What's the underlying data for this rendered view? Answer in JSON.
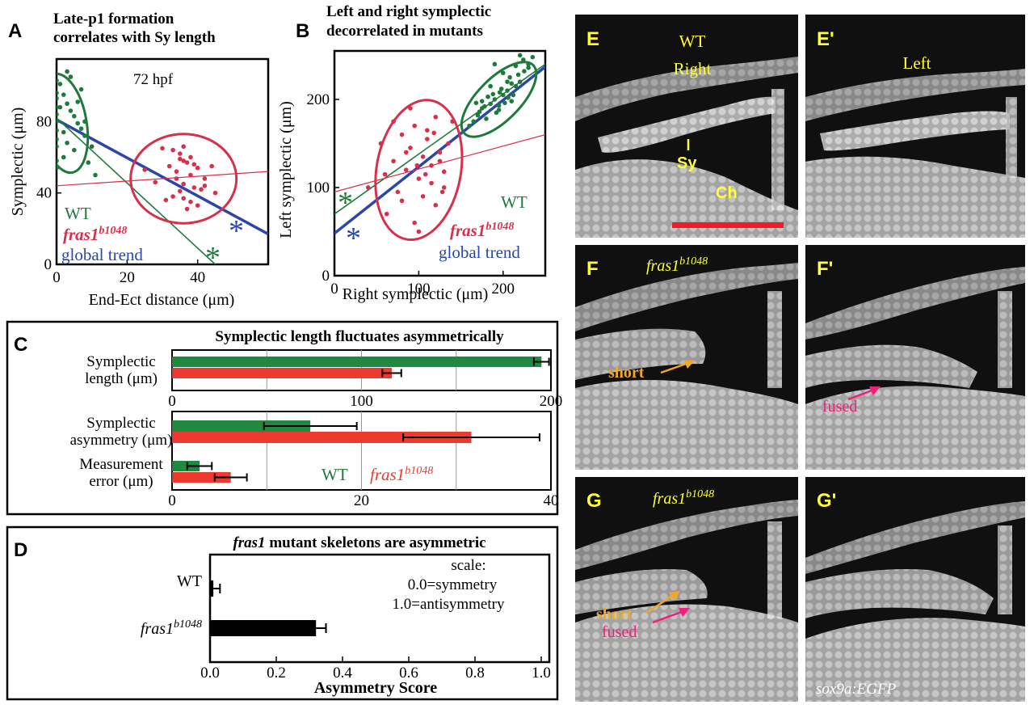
{
  "colors": {
    "wt": "#1e7a3c",
    "mut": "#d8304a",
    "global": "#2b46a8",
    "bar_wt": "#1f8a3f",
    "bar_mut": "#ee3a2e",
    "micro_label": "#ffff33",
    "orange": "#f0a828",
    "magenta": "#f0207a"
  },
  "panels": {
    "a": {
      "letter": "A",
      "title1": "Late-p1 formation",
      "title2": "correlates with Sy length",
      "stage": "72 hpf",
      "ylabel": "Symplectic  (μm)",
      "xlabel": "End-Ect distance (μm)",
      "legend_wt": "WT",
      "legend_mut": "fras1",
      "legend_mut_sup": "b1048",
      "legend_global": "global trend",
      "star": "*"
    },
    "b": {
      "letter": "B",
      "title1": "Left and right symplectic",
      "title2": "decorrelated in mutants",
      "ylabel": "Left symplectic (μm)",
      "xlabel": "Right symplectic (μm)",
      "legend_wt": "WT",
      "legend_mut": "fras1",
      "legend_mut_sup": "b1048",
      "legend_global": "global trend",
      "star": "*"
    },
    "c": {
      "letter": "C",
      "title": "Symplectic length fluctuates asymmetrically",
      "row1a": "Symplectic",
      "row1b": "length (μm)",
      "row2a": "Symplectic",
      "row2b": "asymmetry (μm)",
      "row3a": "Measurement",
      "row3b": "error (μm)",
      "legend_wt": "WT",
      "legend_mut": "fras1",
      "legend_mut_sup": "b1048"
    },
    "d": {
      "letter": "D",
      "title_italic": "fras1",
      "title_rest": " mutant skeletons are asymmetric",
      "cat_wt": "WT",
      "cat_mut": "fras1",
      "cat_mut_sup": "b1048",
      "note1": "scale:",
      "note2": "0.0=symmetry",
      "note3": "1.0=antisymmetry",
      "xlabel": "Asymmetry Score"
    },
    "e": {
      "letter": "E",
      "label1": "WT",
      "label2": "Right",
      "sy": "Sy",
      "ch": "Ch"
    },
    "e2": {
      "letter": "E'",
      "label": "Left"
    },
    "f": {
      "letter": "F",
      "genotype": "fras1",
      "genotype_sup": "b1048",
      "short": "short"
    },
    "f2": {
      "letter": "F'",
      "fused": "fused"
    },
    "g": {
      "letter": "G",
      "genotype": "fras1",
      "genotype_sup": "b1048",
      "short": "short",
      "fused": "fused"
    },
    "g2": {
      "letter": "G'",
      "transgene": "sox9a:EGFP"
    }
  },
  "chart_data": [
    {
      "type": "scatter",
      "panel": "A",
      "title": "Late-p1 formation correlates with Sy length",
      "xlabel": "End-Ect distance (μm)",
      "ylabel": "Symplectic (μm)",
      "xlim": [
        0,
        60
      ],
      "ylim": [
        0,
        115
      ],
      "xticks": [
        0,
        20,
        40
      ],
      "yticks": [
        0,
        40,
        80
      ],
      "series": [
        {
          "name": "WT",
          "x": [
            0,
            0,
            0,
            0,
            0,
            0,
            0,
            0,
            0,
            1,
            2,
            3,
            4,
            5,
            6,
            7,
            8,
            3,
            5,
            2,
            9,
            10,
            4,
            1,
            6,
            8,
            2,
            0,
            0,
            11,
            3,
            7
          ],
          "y": [
            103,
            96,
            93,
            88,
            84,
            80,
            75,
            70,
            66,
            101,
            95,
            90,
            86,
            83,
            79,
            76,
            72,
            68,
            64,
            60,
            57,
            66,
            105,
            88,
            91,
            80,
            74,
            58,
            54,
            50,
            108,
            98
          ]
        },
        {
          "name": "fras1 b1048",
          "x": [
            30,
            33,
            35,
            36,
            38,
            37,
            32,
            40,
            34,
            38,
            42,
            28,
            36,
            39,
            41,
            35,
            45,
            33,
            31,
            38,
            40,
            37,
            36,
            34,
            25,
            39,
            42,
            35,
            44,
            36
          ],
          "y": [
            65,
            64,
            62,
            66,
            60,
            57,
            55,
            54,
            52,
            50,
            48,
            46,
            45,
            43,
            42,
            41,
            40,
            38,
            36,
            35,
            33,
            31,
            58,
            48,
            53,
            56,
            44,
            59,
            55,
            37
          ]
        }
      ],
      "trend_lines": [
        {
          "name": "global trend",
          "from": [
            0,
            81
          ],
          "to": [
            60,
            17
          ]
        },
        {
          "name": "WT trend",
          "from": [
            0,
            82
          ],
          "to": [
            45,
            0
          ]
        },
        {
          "name": "fras1 trend",
          "from": [
            0,
            44
          ],
          "to": [
            60,
            52
          ]
        }
      ],
      "ellipses": [
        {
          "name": "WT",
          "cx": 2,
          "cy": 79,
          "rx": 6.5,
          "ry": 28,
          "angle": -10
        },
        {
          "name": "fras1 b1048",
          "cx": 36,
          "cy": 48,
          "rx": 15,
          "ry": 25,
          "angle": 0
        }
      ]
    },
    {
      "type": "scatter",
      "panel": "B",
      "title": "Left and right symplectic decorrelated in mutants",
      "xlabel": "Right symplectic (μm)",
      "ylabel": "Left symplectic (μm)",
      "xlim": [
        0,
        250
      ],
      "ylim": [
        0,
        255
      ],
      "xticks": [
        0,
        100,
        200
      ],
      "yticks": [
        0,
        100,
        200
      ],
      "series": [
        {
          "name": "WT",
          "x": [
            170,
            175,
            180,
            185,
            190,
            195,
            200,
            205,
            210,
            215,
            220,
            225,
            230,
            165,
            172,
            178,
            188,
            192,
            198,
            202,
            208,
            212,
            218,
            224,
            185,
            195,
            205,
            215,
            160,
            182,
            200,
            210,
            220,
            190,
            175,
            168,
            230,
            235,
            196,
            206
          ],
          "y": [
            182,
            190,
            178,
            195,
            200,
            188,
            205,
            210,
            198,
            215,
            220,
            232,
            240,
            175,
            186,
            192,
            206,
            185,
            212,
            196,
            225,
            205,
            228,
            245,
            215,
            193,
            220,
            238,
            170,
            203,
            230,
            218,
            250,
            240,
            198,
            196,
            236,
            248,
            208,
            202
          ]
        },
        {
          "name": "fras1 b1048",
          "x": [
            40,
            55,
            60,
            70,
            75,
            80,
            85,
            90,
            95,
            100,
            105,
            110,
            115,
            120,
            125,
            130,
            80,
            95,
            105,
            115,
            125,
            135,
            70,
            90,
            110,
            130,
            100,
            120,
            140,
            85,
            98,
            108,
            118,
            128,
            62
          ],
          "y": [
            100,
            150,
            115,
            130,
            95,
            160,
            120,
            145,
            170,
            110,
            135,
            155,
            125,
            180,
            140,
            118,
            85,
            60,
            90,
            105,
            130,
            150,
            175,
            190,
            165,
            100,
            50,
            80,
            175,
            140,
            125,
            115,
            162,
            95,
            70
          ]
        }
      ],
      "trend_lines": [
        {
          "name": "global trend",
          "from": [
            0,
            48
          ],
          "to": [
            250,
            237
          ]
        },
        {
          "name": "WT trend",
          "from": [
            0,
            70
          ],
          "to": [
            250,
            240
          ]
        },
        {
          "name": "fras1 trend",
          "from": [
            0,
            95
          ],
          "to": [
            250,
            160
          ]
        }
      ],
      "ellipses": [
        {
          "name": "WT",
          "cx": 195,
          "cy": 200,
          "rx": 25,
          "ry": 55,
          "angle": 45
        },
        {
          "name": "fras1 b1048",
          "cx": 100,
          "cy": 120,
          "rx": 50,
          "ry": 80,
          "angle": 10
        }
      ]
    },
    {
      "type": "bar",
      "orientation": "horizontal",
      "panel": "C",
      "title": "Symplectic length fluctuates asymmetrically",
      "groups": [
        {
          "category": "Symplectic length (μm)",
          "xlim": [
            0,
            200
          ],
          "xticks": [
            0,
            100,
            200
          ],
          "series": [
            {
              "name": "WT",
              "value": 195,
              "error": 4
            },
            {
              "name": "fras1 b1048",
              "value": 116,
              "error": 5
            }
          ]
        },
        {
          "category": "Symplectic asymmetry (μm)",
          "xlim": [
            0,
            40
          ],
          "xticks": [
            0,
            20,
            40
          ],
          "series": [
            {
              "name": "WT",
              "value": 14.6,
              "error": 4.9
            },
            {
              "name": "fras1 b1048",
              "value": 31.6,
              "error": 7.2
            }
          ]
        },
        {
          "category": "Measurement error (μm)",
          "xlim": [
            0,
            40
          ],
          "xticks": [
            0,
            20,
            40
          ],
          "series": [
            {
              "name": "WT",
              "value": 2.9,
              "error": 1.3
            },
            {
              "name": "fras1 b1048",
              "value": 6.2,
              "error": 1.7
            }
          ]
        }
      ]
    },
    {
      "type": "bar",
      "orientation": "horizontal",
      "panel": "D",
      "title": "fras1 mutant skeletons are asymmetric",
      "xlabel": "Asymmetry Score",
      "xlim": [
        0,
        1.0
      ],
      "xticks": [
        0.0,
        0.2,
        0.4,
        0.6,
        0.8,
        1.0
      ],
      "categories": [
        "WT",
        "fras1 b1048"
      ],
      "values": [
        0.01,
        0.32
      ],
      "errors": [
        0.02,
        0.03
      ]
    }
  ]
}
